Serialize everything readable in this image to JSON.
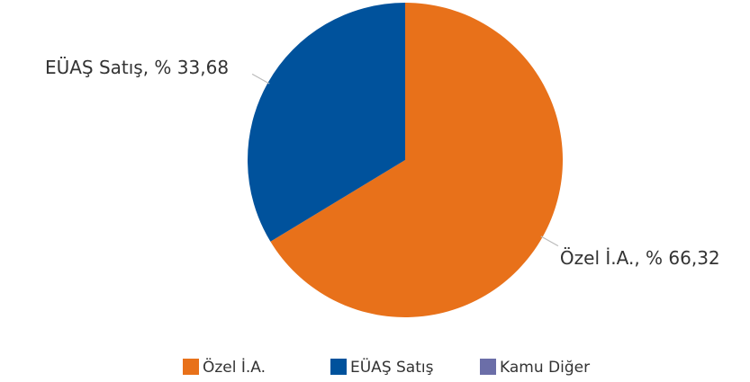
{
  "chart_data": {
    "type": "pie",
    "categories": [
      "Özel İ.A.",
      "EÜAŞ Satış",
      "Kamu Diğer"
    ],
    "values": [
      66.32,
      33.68,
      0
    ],
    "value_labels": [
      "Özel İ.A., % 66,32",
      "EÜAŞ Satış, % 33,68",
      null
    ],
    "colors": [
      "#e8711a",
      "#00529c",
      "#6b6ea8"
    ],
    "legend": "bottom"
  }
}
